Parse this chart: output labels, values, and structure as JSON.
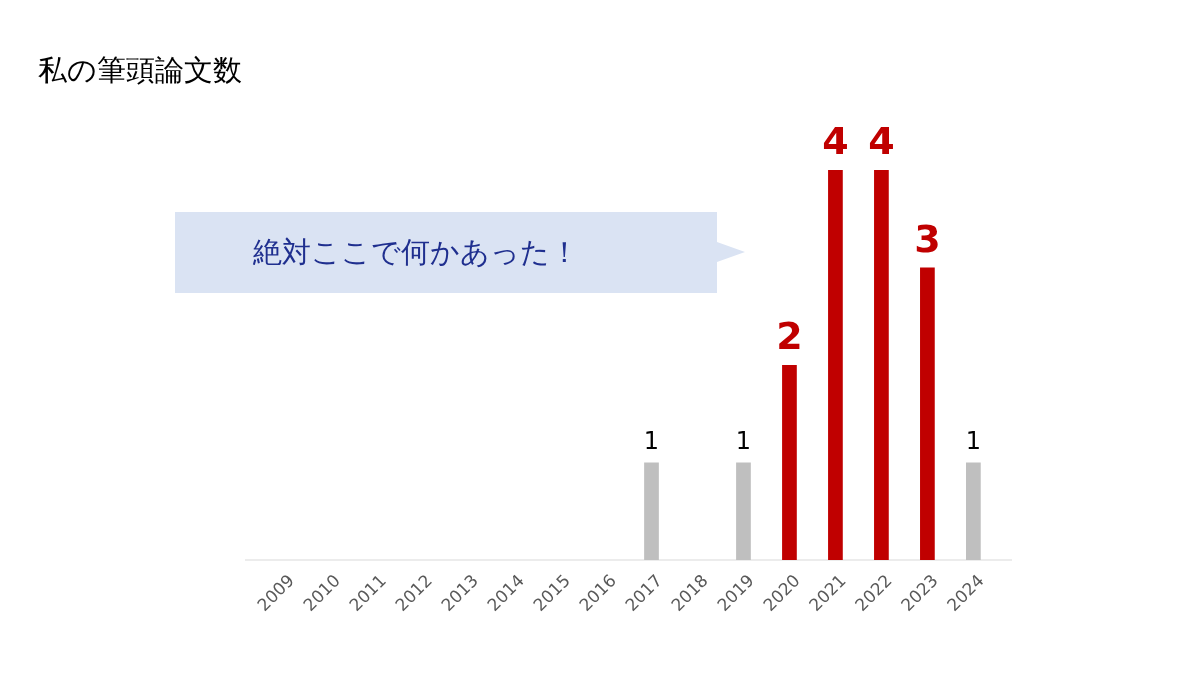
{
  "chart_data": {
    "type": "bar",
    "title": "私の筆頭論文数",
    "categories": [
      "2009",
      "2010",
      "2011",
      "2012",
      "2013",
      "2014",
      "2015",
      "2016",
      "2017",
      "2018",
      "2019",
      "2020",
      "2021",
      "2022",
      "2023",
      "2024"
    ],
    "values": [
      0,
      0,
      0,
      0,
      0,
      0,
      0,
      0,
      1,
      0,
      1,
      2,
      4,
      4,
      3,
      1
    ],
    "colors": [
      "#bfbfbf",
      "#bfbfbf",
      "#bfbfbf",
      "#bfbfbf",
      "#bfbfbf",
      "#bfbfbf",
      "#bfbfbf",
      "#bfbfbf",
      "#bfbfbf",
      "#bfbfbf",
      "#bfbfbf",
      "#c00000",
      "#c00000",
      "#c00000",
      "#c00000",
      "#bfbfbf"
    ],
    "value_labels": [
      null,
      null,
      null,
      null,
      null,
      null,
      null,
      null,
      "1",
      null,
      "1",
      "2",
      "4",
      "4",
      "3",
      "1"
    ],
    "annotations": [
      "絶対ここで何かあった！"
    ]
  }
}
